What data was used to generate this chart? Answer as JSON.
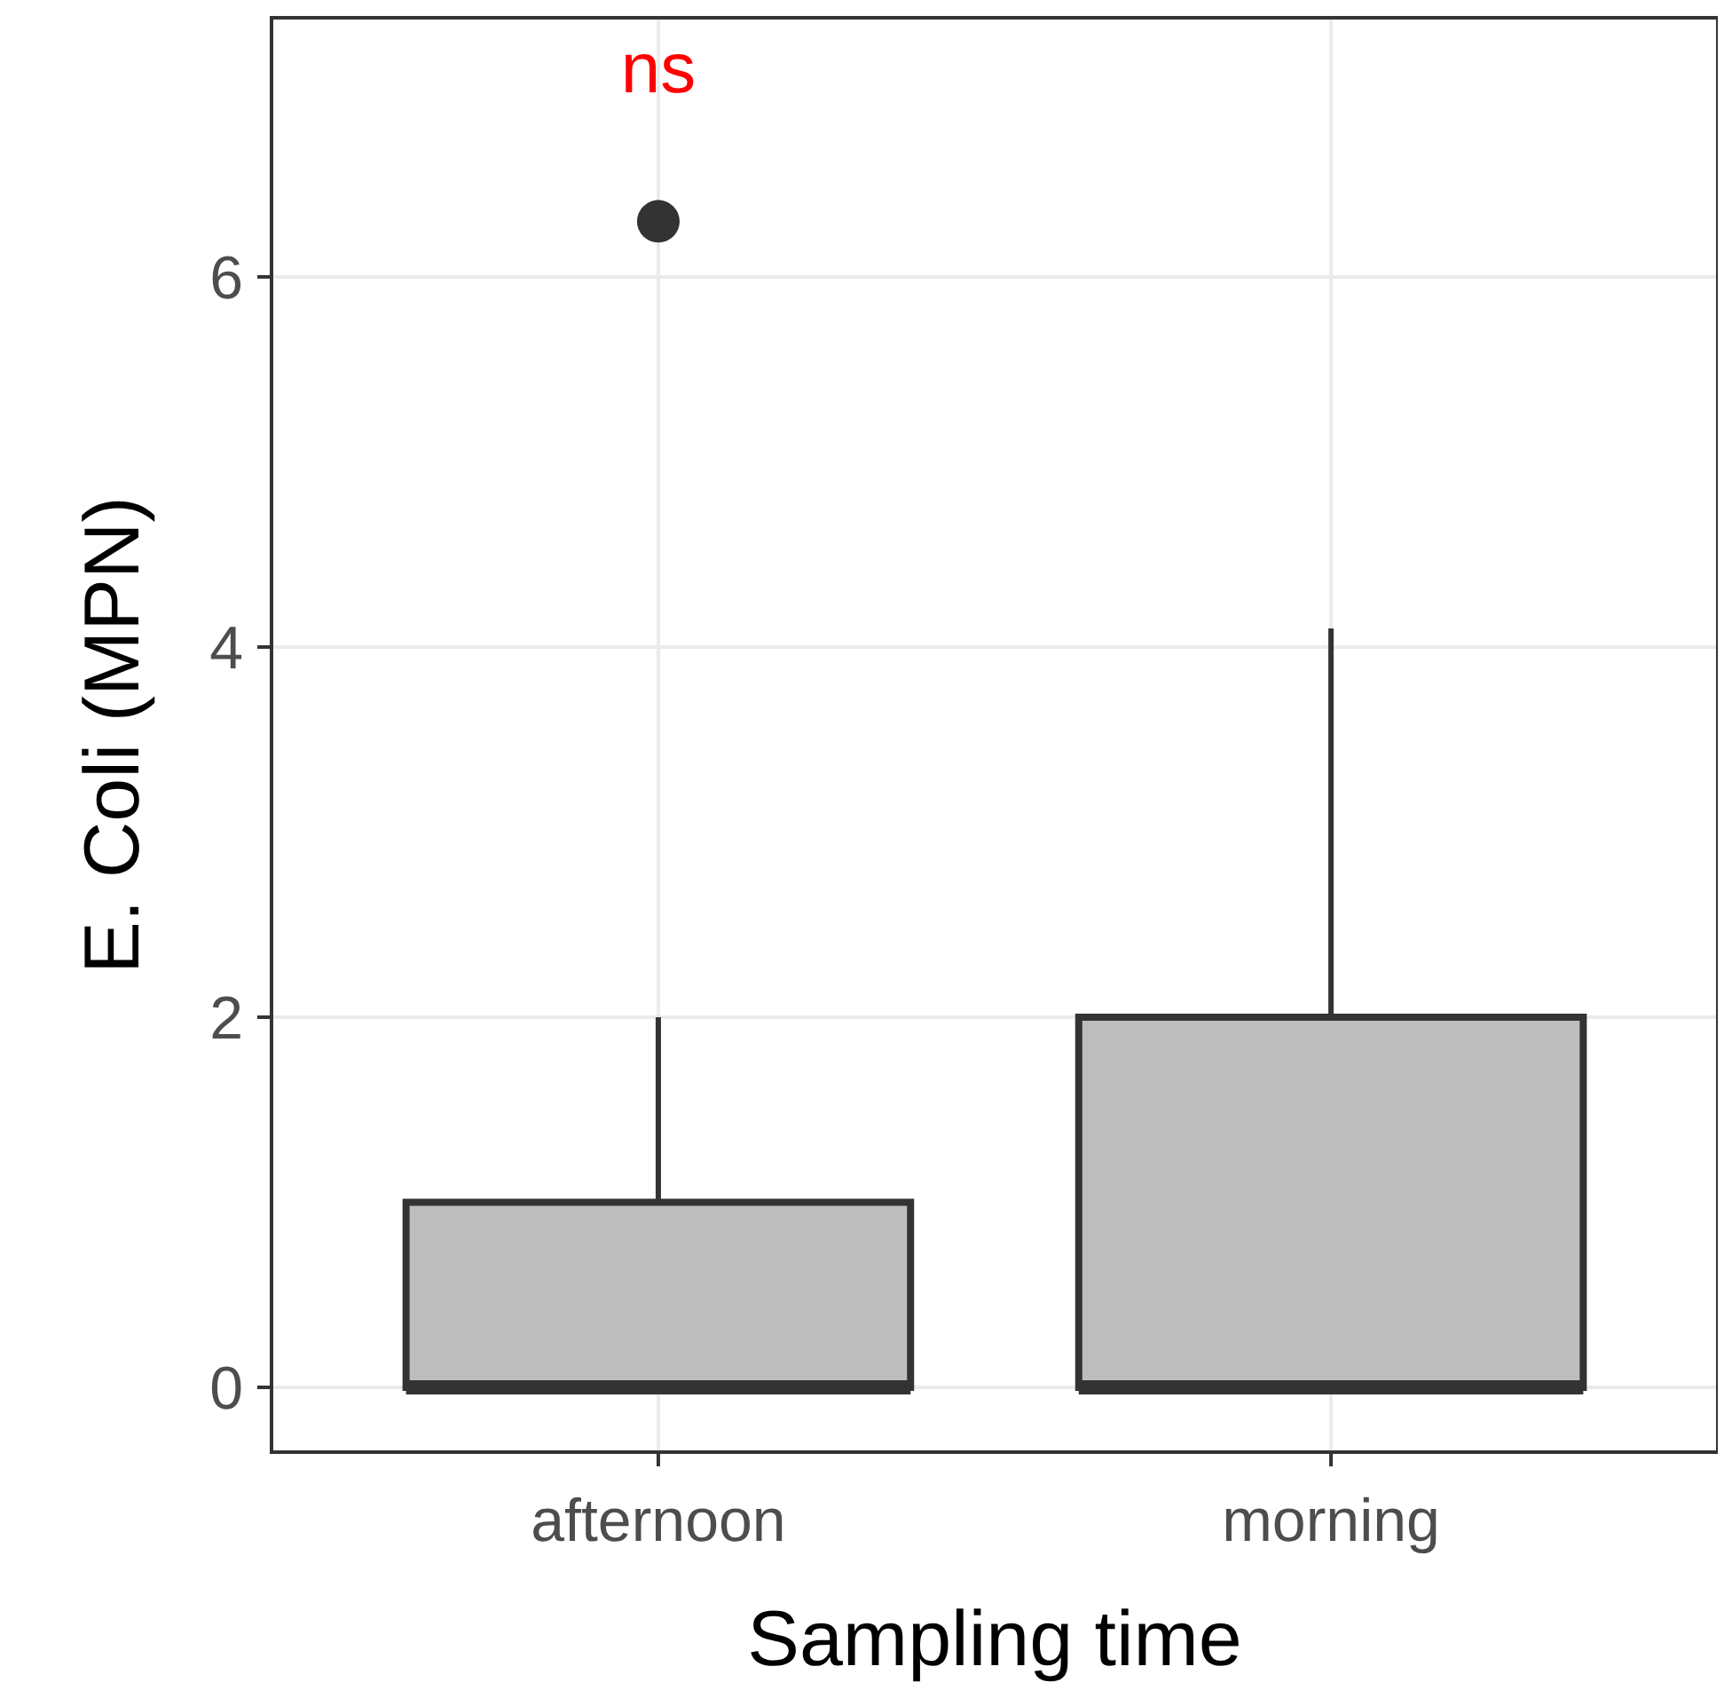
{
  "chart_data": {
    "type": "box",
    "xlabel": "Sampling time",
    "ylabel": "E. Coli (MPN)",
    "categories": [
      "afternoon",
      "morning"
    ],
    "boxes": [
      {
        "low": 0,
        "q1": 0,
        "median": 0,
        "q3": 1,
        "high": 2,
        "outliers": [
          6.3
        ]
      },
      {
        "low": 0,
        "q1": 0,
        "median": 0,
        "q3": 2,
        "high": 4.1
      }
    ],
    "color": "#bdbdbd",
    "ylim": [
      -0.35,
      7.4
    ],
    "yticks": [
      0,
      2,
      4,
      6
    ],
    "grid": true,
    "annotations": [
      "ns"
    ]
  }
}
